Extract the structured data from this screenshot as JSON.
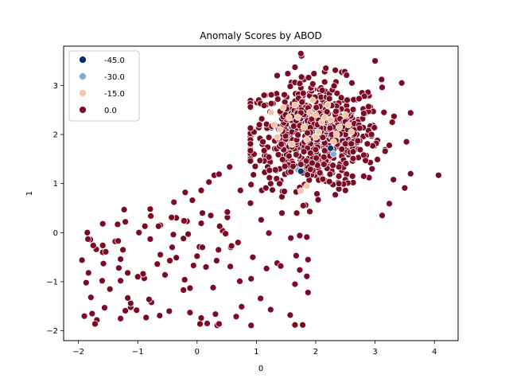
{
  "chart_data": {
    "type": "scatter",
    "title": "Anomaly Scores by ABOD",
    "xlabel": "0",
    "ylabel": "1",
    "xlim": [
      -2.25,
      4.4
    ],
    "ylim": [
      -2.2,
      3.8
    ],
    "xticks": [
      -2,
      -1,
      0,
      1,
      2,
      3,
      4
    ],
    "yticks": [
      -2,
      -1,
      0,
      1,
      2,
      3
    ],
    "xtick_labels": [
      "−2",
      "−1",
      "0",
      "1",
      "2",
      "3",
      "4"
    ],
    "ytick_labels": [
      "−2",
      "−1",
      "0",
      "1",
      "2",
      "3"
    ],
    "grid": false,
    "legend_position": "top-left",
    "series": [
      {
        "name": "-45.0",
        "color": "#08306b",
        "points": [
          [
            2.25,
            1.72
          ],
          [
            1.75,
            1.25
          ]
        ]
      },
      {
        "name": "-30.0",
        "color": "#7bafd4",
        "points": [
          [
            1.7,
            1.28
          ],
          [
            2.3,
            1.6
          ]
        ]
      },
      {
        "name": "-15.0",
        "color": "#f6c3a5",
        "points": [
          [
            1.25,
            2.45
          ],
          [
            1.4,
            2.1
          ],
          [
            1.55,
            2.35
          ],
          [
            1.65,
            2.6
          ],
          [
            1.8,
            2.15
          ],
          [
            1.9,
            2.45
          ],
          [
            2.0,
            1.95
          ],
          [
            2.1,
            2.25
          ],
          [
            2.2,
            2.6
          ],
          [
            2.3,
            1.85
          ],
          [
            2.4,
            2.15
          ],
          [
            2.5,
            2.4
          ],
          [
            1.6,
            1.8
          ],
          [
            1.75,
            0.85
          ],
          [
            1.85,
            0.95
          ],
          [
            1.3,
            2.2
          ],
          [
            1.7,
            2.35
          ],
          [
            2.05,
            2.05
          ],
          [
            2.15,
            2.35
          ],
          [
            2.35,
            2.0
          ],
          [
            1.45,
            2.55
          ],
          [
            2.55,
            2.2
          ],
          [
            1.95,
            2.7
          ],
          [
            2.25,
            2.3
          ],
          [
            2.6,
            2.05
          ],
          [
            1.35,
            1.95
          ],
          [
            2.0,
            2.4
          ],
          [
            1.85,
            1.9
          ]
        ]
      },
      {
        "name": "0.0",
        "color": "#7b0a24",
        "points": []
      }
    ]
  }
}
